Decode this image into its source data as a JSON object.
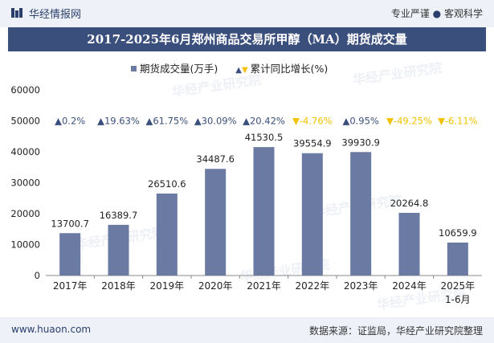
{
  "header": {
    "brand": "华经情报网",
    "tagline_left": "专业严谨",
    "tagline_sep": "●",
    "tagline_right": "客观科学"
  },
  "chart_data": {
    "type": "bar",
    "title": "2017-2025年6月郑州商品交易所甲醇（MA）期货成交量",
    "categories": [
      "2017年",
      "2018年",
      "2019年",
      "2020年",
      "2021年",
      "2022年",
      "2023年",
      "2024年",
      "2025年 1-6月"
    ],
    "series": [
      {
        "name": "期货成交量(万手)",
        "values": [
          13700.7,
          16389.7,
          26510.6,
          34487.6,
          41530.5,
          39554.9,
          39930.9,
          20264.8,
          10659.9
        ],
        "color": "#6b7aa3"
      }
    ],
    "growth": {
      "name": "累计同比增长(%)",
      "labels": [
        "0.2%",
        "19.63%",
        "61.75%",
        "30.09%",
        "20.42%",
        "-4.76%",
        "0.95%",
        "-49.25%",
        "-6.11%"
      ],
      "up_color": "#3b4f7c",
      "down_color": "#f2c200"
    },
    "ylim": [
      0,
      60000
    ],
    "yticks": [
      0,
      10000,
      20000,
      30000,
      40000,
      50000,
      60000
    ],
    "legend_position": "top",
    "grid": false
  },
  "watermark": "华经产业研究院",
  "footer": {
    "url": "www.huaon.com",
    "source": "数据来源：证监局，华经产业研究院整理"
  }
}
